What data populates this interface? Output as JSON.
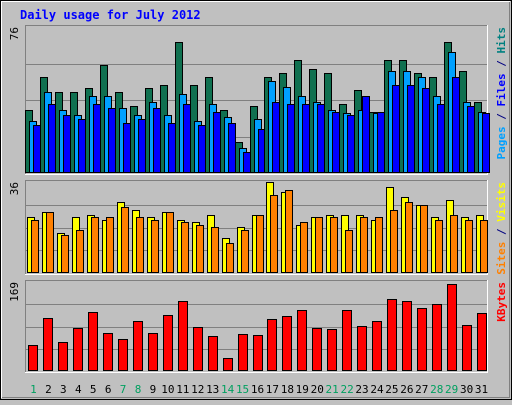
{
  "chart_data": {
    "type": "bar",
    "title": "Daily usage for July 2012",
    "days": [
      "1",
      "2",
      "3",
      "4",
      "5",
      "6",
      "7",
      "8",
      "9",
      "10",
      "11",
      "12",
      "13",
      "14",
      "15",
      "16",
      "17",
      "18",
      "19",
      "20",
      "21",
      "22",
      "23",
      "24",
      "25",
      "26",
      "27",
      "28",
      "29",
      "30",
      "31"
    ],
    "weekend_days": [
      "1",
      "7",
      "8",
      "14",
      "15",
      "21",
      "22",
      "28",
      "29"
    ],
    "panels": [
      {
        "name": "traffic",
        "ymax_label": "76",
        "ymax": 76,
        "ylabel_parts": [
          {
            "text": "Pages",
            "color": "#00a0ff"
          },
          {
            "text": " / ",
            "color": "#000080"
          },
          {
            "text": "Files",
            "color": "#0000ff"
          },
          {
            "text": " / ",
            "color": "#000080"
          },
          {
            "text": "Hits",
            "color": "#008080"
          }
        ],
        "series": [
          {
            "name": "Hits",
            "color": "#107050",
            "values": [
              33,
              50,
              42,
              42,
              44,
              56,
              42,
              35,
              44,
              46,
              68,
              46,
              50,
              33,
              16,
              35,
              50,
              52,
              59,
              54,
              52,
              36,
              43,
              32,
              59,
              59,
              52,
              50,
              68,
              53,
              37
            ]
          },
          {
            "name": "Pages",
            "color": "#00a0ff",
            "values": [
              27,
              42,
              33,
              30,
              40,
              40,
              34,
              30,
              37,
              30,
              41,
              27,
              36,
              29,
              13,
              28,
              48,
              45,
              40,
              37,
              33,
              31,
              33,
              31,
              53,
              53,
              50,
              40,
              63,
              37,
              32
            ]
          },
          {
            "name": "Files",
            "color": "#0000ff",
            "values": [
              25,
              36,
              30,
              28,
              36,
              34,
              26,
              28,
              34,
              26,
              36,
              25,
              32,
              26,
              11,
              23,
              37,
              36,
              36,
              36,
              32,
              30,
              40,
              32,
              46,
              46,
              44,
              36,
              50,
              35,
              31
            ]
          }
        ]
      },
      {
        "name": "visitors",
        "ymax_label": "36",
        "ymax": 36,
        "ylabel_parts": [
          {
            "text": "Sites",
            "color": "#ff8000"
          },
          {
            "text": " / ",
            "color": "#000080"
          },
          {
            "text": "Visits",
            "color": "#ffff00"
          }
        ],
        "series": [
          {
            "name": "Visits",
            "color": "#ffff00",
            "values": [
              22,
              24,
              16,
              22,
              23,
              21,
              28,
              25,
              22,
              24,
              21,
              20,
              23,
              14,
              18,
              23,
              36,
              32,
              19,
              22,
              23,
              23,
              23,
              21,
              34,
              30,
              27,
              22,
              29,
              22,
              23
            ]
          },
          {
            "name": "Sites",
            "color": "#ff8000",
            "values": [
              21,
              24,
              15,
              17,
              22,
              22,
              26,
              22,
              21,
              24,
              20,
              19,
              18,
              12,
              17,
              23,
              31,
              33,
              20,
              22,
              22,
              17,
              22,
              22,
              25,
              28,
              27,
              21,
              23,
              21,
              21
            ]
          }
        ]
      },
      {
        "name": "kbytes",
        "ymax_label": "169",
        "ymax": 169,
        "ylabel_parts": [
          {
            "text": "KBytes",
            "color": "#ff0000"
          }
        ],
        "series": [
          {
            "name": "KBytes",
            "color": "#ff0000",
            "values": [
              50,
              100,
              56,
              82,
              112,
              72,
              60,
              94,
              72,
              107,
              133,
              84,
              67,
              24,
              70,
              68,
              98,
              105,
              115,
              82,
              80,
              115,
              86,
              95,
              137,
              132,
              120,
              128,
              166,
              88,
              111
            ]
          }
        ]
      }
    ]
  }
}
